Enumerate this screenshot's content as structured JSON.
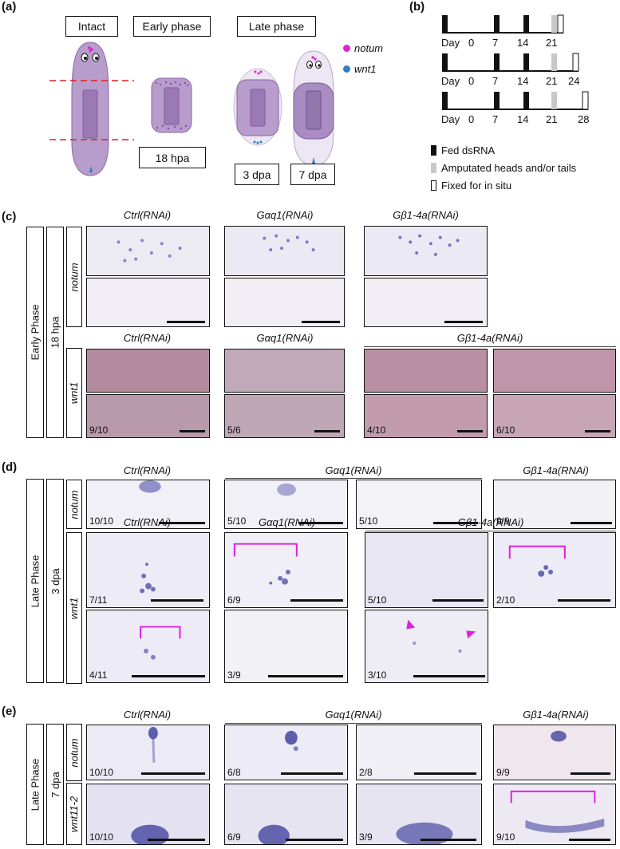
{
  "panel_a": {
    "letter": "(a)",
    "stages": [
      "Intact",
      "Early phase",
      "Late phase"
    ],
    "timepoints": [
      "18 hpa",
      "3 dpa",
      "7 dpa"
    ],
    "legend": [
      {
        "label": "notum",
        "color": "#e020d0"
      },
      {
        "label": "wnt1",
        "color": "#2a7fc0"
      }
    ]
  },
  "panel_b": {
    "letter": "(b)",
    "day_prefix": "Day",
    "timelines": [
      {
        "ticks": [
          "0",
          "7",
          "14",
          "21"
        ]
      },
      {
        "ticks": [
          "0",
          "7",
          "14",
          "21",
          "24"
        ]
      },
      {
        "ticks": [
          "0",
          "7",
          "14",
          "21",
          "28"
        ]
      }
    ],
    "key": [
      "Fed dsRNA",
      "Amputated heads and/or tails",
      "Fixed for in situ"
    ]
  },
  "panel_c": {
    "letter": "(c)",
    "phase": "Early Phase",
    "time": "18 hpa",
    "genes": [
      "notum",
      "wnt1"
    ],
    "row1_headers": [
      "Ctrl(RNAi)",
      "Gαq1(RNAi)",
      "Gβ1-4a(RNAi)"
    ],
    "row2_headers": [
      "Ctrl(RNAi)",
      "Gαq1(RNAi)",
      "Gβ1-4a(RNAi)"
    ],
    "wnt1_fractions": [
      "9/10",
      "5/6",
      "4/10",
      "6/10"
    ]
  },
  "panel_d": {
    "letter": "(d)",
    "phase": "Late Phase",
    "time": "3 dpa",
    "genes": [
      "notum",
      "wnt1"
    ],
    "notum_headers": [
      "Ctrl(RNAi)",
      "Gαq1(RNAi)",
      "Gβ1-4a(RNAi)"
    ],
    "wnt1_headers": [
      "Ctrl(RNAi)",
      "Gαq1(RNAi)",
      "Gβ1-4a(RNAi)"
    ],
    "notum_fractions": [
      "10/10",
      "5/10",
      "5/10",
      "9/9"
    ],
    "wnt1_row1_fractions": [
      "7/11",
      "6/9",
      "5/10",
      "2/10"
    ],
    "wnt1_row2_fractions": [
      "4/11",
      "3/9",
      "3/10"
    ]
  },
  "panel_e": {
    "letter": "(e)",
    "phase": "Late Phase",
    "time": "7 dpa",
    "genes": [
      "notum",
      "wnt11-2"
    ],
    "headers": [
      "Ctrl(RNAi)",
      "Gαq1(RNAi)",
      "Gβ1-4a(RNAi)"
    ],
    "notum_fractions": [
      "10/10",
      "6/8",
      "2/8",
      "9/9"
    ],
    "wnt_fractions": [
      "10/10",
      "6/9",
      "3/9",
      "9/10"
    ]
  },
  "colors": {
    "notum_stain": "#e020d0",
    "wnt1_stain": "#2a7fc0",
    "worm_fill": "#b79ccc",
    "pharynx": "#9a79b5",
    "cut_line": "#e02020",
    "bracket": "#e01ee0",
    "amputated_bar": "#c8c8c8"
  }
}
